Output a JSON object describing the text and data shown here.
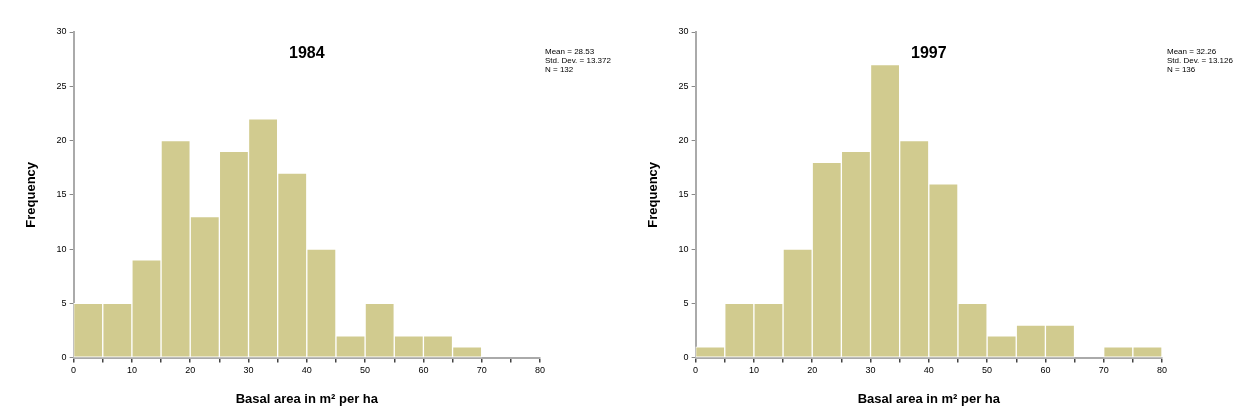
{
  "chart_data": [
    {
      "type": "histogram",
      "title": "1984",
      "xlabel": "Basal area in m² per ha",
      "ylabel": "Frequency",
      "annotations": [
        "Mean = 28.53",
        "Std. Dev. = 13.372",
        "N = 132"
      ],
      "bins": [
        0,
        5,
        10,
        15,
        20,
        25,
        30,
        35,
        40,
        45,
        50,
        55,
        60,
        65,
        70
      ],
      "values": [
        5,
        5,
        9,
        20,
        13,
        19,
        22,
        17,
        10,
        2,
        5,
        2,
        2,
        1
      ],
      "color": "#d1cb8f",
      "xlim": [
        0,
        80
      ],
      "xticks": [
        0,
        {
          "value": 5,
          "label": null
        },
        10,
        {
          "value": 15,
          "label": null
        },
        20,
        {
          "value": 25,
          "label": null
        },
        30,
        {
          "value": 35,
          "label": null
        },
        40,
        {
          "value": 45,
          "label": null
        },
        50,
        {
          "value": 55,
          "label": null
        },
        60,
        {
          "value": 65,
          "label": null
        },
        70,
        {
          "value": 75,
          "label": null
        },
        80
      ],
      "ylim": [
        0,
        30
      ],
      "yticks": [
        0,
        5,
        10,
        15,
        20,
        25,
        30
      ],
      "grid": false,
      "legend": false
    },
    {
      "type": "histogram",
      "title": "1997",
      "xlabel": "Basal area in m² per ha",
      "ylabel": "Frequency",
      "annotations": [
        "Mean = 32.26",
        "Std. Dev. = 13.126",
        "N = 136"
      ],
      "bins": [
        0,
        5,
        10,
        15,
        20,
        25,
        30,
        35,
        40,
        45,
        50,
        55,
        60,
        65,
        70,
        75,
        80
      ],
      "values": [
        1,
        5,
        5,
        10,
        18,
        19,
        27,
        20,
        16,
        5,
        2,
        3,
        3,
        0,
        1,
        1
      ],
      "color": "#d1cb8f",
      "xlim": [
        0,
        80
      ],
      "xticks": [
        0,
        {
          "value": 5,
          "label": null
        },
        10,
        {
          "value": 15,
          "label": null
        },
        20,
        {
          "value": 25,
          "label": null
        },
        30,
        {
          "value": 35,
          "label": null
        },
        40,
        {
          "value": 45,
          "label": null
        },
        50,
        {
          "value": 55,
          "label": null
        },
        60,
        {
          "value": 65,
          "label": null
        },
        70,
        {
          "value": 75,
          "label": null
        },
        80
      ],
      "ylim": [
        0,
        30
      ],
      "yticks": [
        0,
        5,
        10,
        15,
        20,
        25,
        30
      ],
      "grid": false,
      "legend": false
    }
  ]
}
